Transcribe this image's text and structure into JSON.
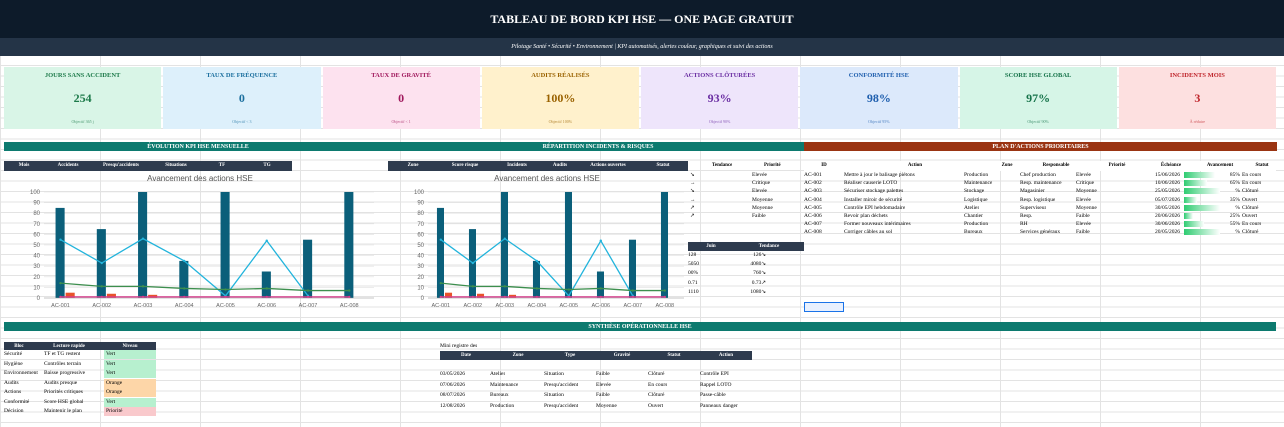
{
  "title": "TABLEAU DE BORD KPI HSE — ONE PAGE GRATUIT",
  "subtitle": "Pilotage Santé • Sécurité • Environnement | KPI automatisés, alertes couleur, graphiques et suivi des actions",
  "kpis": [
    {
      "label": "JOURS SANS ACCIDENT",
      "value": "254",
      "objective": "Objectif 365 j",
      "bg": "#d9f5e7",
      "fg": "#1d7a4a"
    },
    {
      "label": "TAUX DE FRÉQUENCE",
      "value": "0",
      "objective": "Objectif < 3",
      "bg": "#ddf0fb",
      "fg": "#1b6f9e"
    },
    {
      "label": "TAUX DE GRAVITÉ",
      "value": "0",
      "objective": "Objectif < 1",
      "bg": "#fde2ef",
      "fg": "#a0185c"
    },
    {
      "label": "AUDITS RÉALISÉS",
      "value": "100%",
      "objective": "Objectif 100%",
      "bg": "#fff1cc",
      "fg": "#9a6200"
    },
    {
      "label": "ACTIONS CLÔTURÉES",
      "value": "93%",
      "objective": "Objectif 90%",
      "bg": "#eee5fb",
      "fg": "#6b2fa3"
    },
    {
      "label": "CONFORMITÉ HSE",
      "value": "98%",
      "objective": "Objectif 95%",
      "bg": "#dce9fb",
      "fg": "#1f5fae"
    },
    {
      "label": "SCORE HSE GLOBAL",
      "value": "97%",
      "objective": "Objectif 90%",
      "bg": "#d6f5e7",
      "fg": "#16734a"
    },
    {
      "label": "INCIDENTS MOIS",
      "value": "3",
      "objective": "À réduire",
      "bg": "#fde0e0",
      "fg": "#c0272d"
    }
  ],
  "sections": {
    "evolution": "ÉVOLUTION KPI HSE MENSUELLE",
    "repartition": "RÉPARTITION INCIDENTS & RISQUES",
    "plan": "PLAN D'ACTIONS PRIORITAIRES",
    "synthese": "SYNTHÈSE OPÉRATIONNELLE HSE"
  },
  "evo_headers": [
    "Mois",
    "Accidents",
    "Presqu'accidents",
    "Situations",
    "TF",
    "TG"
  ],
  "rep_headers": [
    "Zone",
    "Score risque",
    "Incidents",
    "Audits",
    "Actions ouvertes",
    "Statut"
  ],
  "trend_headers": [
    "Tendance",
    "Priorité"
  ],
  "trend_rows": [
    [
      "↘",
      "Elevée"
    ],
    [
      "→",
      "Critique"
    ],
    [
      "↘",
      "Elevée"
    ],
    [
      "→",
      "Moyenne"
    ],
    [
      "↗",
      "Moyenne"
    ],
    [
      "↗",
      "Faible"
    ]
  ],
  "juin_headers": [
    "Juin",
    "Tendance"
  ],
  "juin_rows": [
    [
      "128",
      "126↘"
    ],
    [
      "5050",
      "4080↘"
    ],
    [
      "00%",
      "760↘"
    ],
    [
      "0.71",
      "0.73↗"
    ],
    [
      "1110",
      "1080↘"
    ]
  ],
  "plan_headers": [
    "ID",
    "Action",
    "Zone",
    "Responsable",
    "Priorité",
    "Échéance",
    "Avancement",
    "Statut"
  ],
  "plan_rows": [
    {
      "id": "AC-001",
      "action": "Mettre à jour le balisage piétons",
      "zone": "Production",
      "resp": "Chef production",
      "prio": "Elevée",
      "date": "15/06/2026",
      "pct": "85%",
      "progress": 0.85,
      "status": "En cours"
    },
    {
      "id": "AC-002",
      "action": "Réaliser causerie LOTO",
      "zone": "Maintenance",
      "resp": "Resp. maintenance",
      "prio": "Critique",
      "date": "10/06/2026",
      "pct": "65%",
      "progress": 0.65,
      "status": "En cours"
    },
    {
      "id": "AC-003",
      "action": "Sécuriser stockage palettes",
      "zone": "Stockage",
      "resp": "Magasinier",
      "prio": "Moyenne",
      "date": "25/05/2026",
      "pct": "%",
      "progress": 1,
      "status": "Clôturé"
    },
    {
      "id": "AC-004",
      "action": "Installer miroir de sécurité",
      "zone": "Logistique",
      "resp": "Resp. logistique",
      "prio": "Elevée",
      "date": "05/07/2026",
      "pct": "35%",
      "progress": 0.35,
      "status": "Ouvert"
    },
    {
      "id": "AC-005",
      "action": "Contrôle EPI hebdomadaire",
      "zone": "Atelier",
      "resp": "Superviseur",
      "prio": "Moyenne",
      "date": "30/05/2026",
      "pct": "%",
      "progress": 1,
      "status": "Clôturé"
    },
    {
      "id": "AC-006",
      "action": "Revoir plan déchets",
      "zone": "Chantier",
      "resp": "Resp.",
      "prio": "Faible",
      "date": "20/06/2026",
      "pct": "25%",
      "progress": 0.25,
      "status": "Ouvert"
    },
    {
      "id": "AC-007",
      "action": "Former nouveaux intérimaires",
      "zone": "Production",
      "resp": "RH",
      "prio": "Elevée",
      "date": "30/06/2026",
      "pct": "55%",
      "progress": 0.55,
      "status": "En cours"
    },
    {
      "id": "AC-008",
      "action": "Corriger câbles au sol",
      "zone": "Bureaux",
      "resp": "Services généraux",
      "prio": "Faible",
      "date": "20/05/2026",
      "pct": "%",
      "progress": 1,
      "status": "Clôturé"
    }
  ],
  "synth_headers": [
    "Bloc",
    "Lecture rapide",
    "Niveau"
  ],
  "synth_rows": [
    {
      "bloc": "Sécurité",
      "lecture": "TF et TG restent",
      "niveau": "Vert",
      "color": "#b7f0cf"
    },
    {
      "bloc": "Hygiène",
      "lecture": "Contrôles terrain",
      "niveau": "Vert",
      "color": "#b7f0cf"
    },
    {
      "bloc": "Environnement",
      "lecture": "Baisse progressive",
      "niveau": "Vert",
      "color": "#b7f0cf"
    },
    {
      "bloc": "Audits",
      "lecture": "Audits presque",
      "niveau": "Orange",
      "color": "#fdd6a8"
    },
    {
      "bloc": "Actions",
      "lecture": "Priorités critiques",
      "niveau": "Orange",
      "color": "#fdd6a8"
    },
    {
      "bloc": "Conformité",
      "lecture": "Score HSE global",
      "niveau": "Vert",
      "color": "#b7f0cf"
    },
    {
      "bloc": "Décision",
      "lecture": "Maintenir le plan",
      "niveau": "Priorité",
      "color": "#f9c9cc"
    }
  ],
  "registre_title": "Mini registre des",
  "registre_headers": [
    "Date",
    "Zone",
    "Type",
    "Gravité",
    "Statut",
    "Action"
  ],
  "registre_rows": [
    [
      "03/05/2026",
      "Atelier",
      "Situation",
      "Faible",
      "Clôturé",
      "Contrôle EPI"
    ],
    [
      "07/06/2026",
      "Maintenance",
      "Presqu'accident",
      "Elevée",
      "En cours",
      "Rappel LOTO"
    ],
    [
      "08/07/2026",
      "Bureaux",
      "Situation",
      "Faible",
      "Clôturé",
      "Passe-câble"
    ],
    [
      "12/08/2026",
      "Production",
      "Presqu'accident",
      "Moyenne",
      "Ouvert",
      "Panneaux danger"
    ]
  ],
  "chart_data": [
    {
      "type": "bar",
      "title": "Avancement des actions HSE",
      "categories": [
        "AC-001",
        "AC-002",
        "AC-003",
        "AC-004",
        "AC-005",
        "AC-006",
        "AC-007",
        "AC-008"
      ],
      "ylim": [
        0,
        100
      ],
      "yticks": [
        0,
        10,
        20,
        30,
        40,
        50,
        60,
        70,
        80,
        90,
        100
      ],
      "grid": true,
      "series": [
        {
          "kind": "bar",
          "values": [
            85,
            65,
            100,
            35,
            100,
            25,
            55,
            100
          ],
          "color": "#0b5f7a"
        },
        {
          "kind": "bar",
          "values": [
            5,
            4,
            3,
            0,
            0,
            0,
            0,
            0
          ],
          "color": "#e8532b"
        },
        {
          "kind": "line",
          "values": [
            55,
            33,
            56,
            35,
            2,
            54,
            2,
            null
          ],
          "color": "#22b4dc"
        },
        {
          "kind": "line",
          "values": [
            14,
            11,
            11,
            9,
            8,
            9,
            7,
            7
          ],
          "color": "#3d8f4e"
        },
        {
          "kind": "line",
          "values": [
            1,
            1,
            1,
            1,
            1,
            1,
            1,
            1
          ],
          "color": "#d93a8c"
        }
      ]
    },
    {
      "type": "bar",
      "title": "Avancement des actions HSE",
      "categories": [
        "AC-001",
        "AC-002",
        "AC-003",
        "AC-004",
        "AC-005",
        "AC-006",
        "AC-007",
        "AC-008"
      ],
      "ylim": [
        0,
        100
      ],
      "yticks": [
        0,
        10,
        20,
        30,
        40,
        50,
        60,
        70,
        80,
        90,
        100
      ],
      "grid": true,
      "series": [
        {
          "kind": "bar",
          "values": [
            85,
            65,
            100,
            35,
            100,
            25,
            55,
            100
          ],
          "color": "#0b5f7a"
        },
        {
          "kind": "bar",
          "values": [
            5,
            4,
            3,
            0,
            0,
            0,
            0,
            0
          ],
          "color": "#e8532b"
        },
        {
          "kind": "line",
          "values": [
            55,
            33,
            56,
            35,
            2,
            54,
            2,
            null
          ],
          "color": "#22b4dc"
        },
        {
          "kind": "line",
          "values": [
            14,
            11,
            11,
            9,
            8,
            9,
            7,
            7
          ],
          "color": "#3d8f4e"
        },
        {
          "kind": "line",
          "values": [
            1,
            1,
            1,
            1,
            1,
            1,
            1,
            1
          ],
          "color": "#d93a8c"
        }
      ]
    }
  ],
  "colors": {
    "teal": "#0d7a6f",
    "orange_dark": "#9a3412",
    "navy": "#2e3b4e"
  }
}
